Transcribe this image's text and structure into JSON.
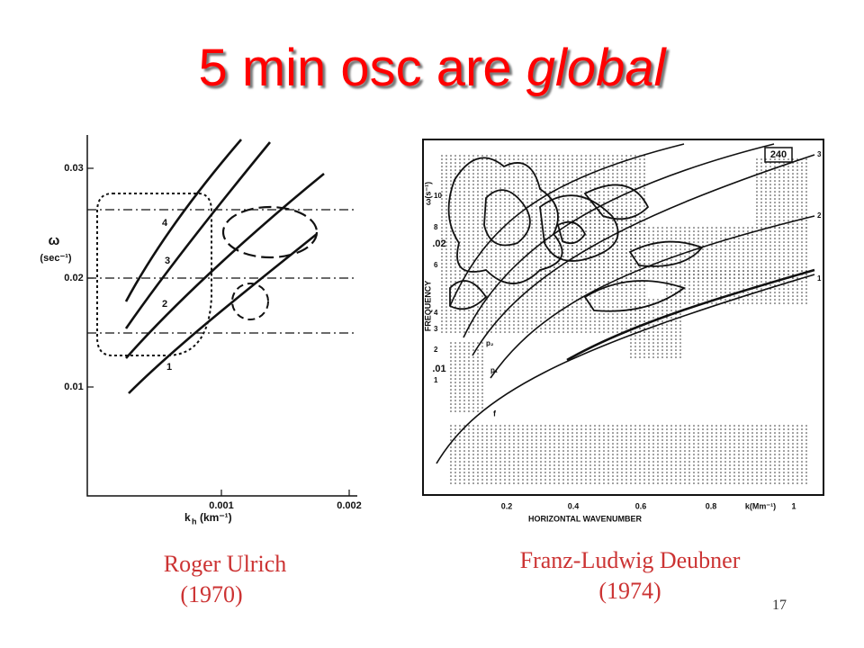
{
  "header": {
    "title": "5 min osc are ",
    "title_emphasis": "global"
  },
  "figures": [
    {
      "caption": {
        "name": "Roger Ulrich",
        "year": "(1970)"
      },
      "y_axis": {
        "symbol": "ω",
        "unit": "(sec⁻¹)",
        "ticks": [
          "0.03",
          "0.02",
          "0.01"
        ]
      },
      "x_axis": {
        "symbol": "k",
        "subscript": "h",
        "unit": "(km⁻¹)",
        "ticks": [
          "0.001",
          "0.002"
        ]
      },
      "curve_labels": [
        "4",
        "3",
        "2",
        "1"
      ]
    },
    {
      "caption": {
        "name": "Franz-Ludwig Deubner",
        "year": "(1974)"
      },
      "y_axis": {
        "symbol": "ω(s⁻¹)",
        "label": "FREQUENCY",
        "ticks": [
          ".02",
          ".01"
        ],
        "minor_ticks": [
          "10",
          "8",
          "6",
          "4",
          "3",
          "2",
          "1"
        ]
      },
      "x_axis": {
        "label": "HORIZONTAL WAVENUMBER",
        "unit": "k(Mm⁻¹)",
        "ticks": [
          "0.2",
          "0.4",
          "0.6",
          "0.8",
          "1"
        ]
      },
      "box_label": "240",
      "mode_labels": [
        "f",
        "p₁",
        "p₂",
        "3",
        "2",
        "1"
      ]
    }
  ],
  "footer": {
    "page_number": "17"
  }
}
